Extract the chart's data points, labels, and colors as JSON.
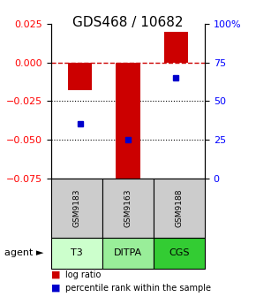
{
  "title": "GDS468 / 10682",
  "samples": [
    "GSM9183",
    "GSM9163",
    "GSM9188"
  ],
  "agents": [
    "T3",
    "DITPA",
    "CGS"
  ],
  "log_ratios": [
    -0.018,
    -0.075,
    0.02
  ],
  "percentile_ranks": [
    0.35,
    0.25,
    0.65
  ],
  "ylim_left": [
    -0.075,
    0.025
  ],
  "ylim_right": [
    0.0,
    1.0
  ],
  "yticks_left": [
    0.025,
    0.0,
    -0.025,
    -0.05,
    -0.075
  ],
  "yticks_right_vals": [
    1.0,
    0.75,
    0.5,
    0.25,
    0.0
  ],
  "yticks_right_labels": [
    "100%",
    "75",
    "50",
    "25",
    "0"
  ],
  "bar_color": "#cc0000",
  "dot_color": "#0000cc",
  "agent_colors": [
    "#ccffcc",
    "#99ee99",
    "#33cc33"
  ],
  "sample_bg": "#cccccc",
  "dotted_lines": [
    -0.025,
    -0.05
  ],
  "bar_width": 0.5,
  "title_fontsize": 11,
  "tick_fontsize": 8,
  "legend_fontsize": 7
}
